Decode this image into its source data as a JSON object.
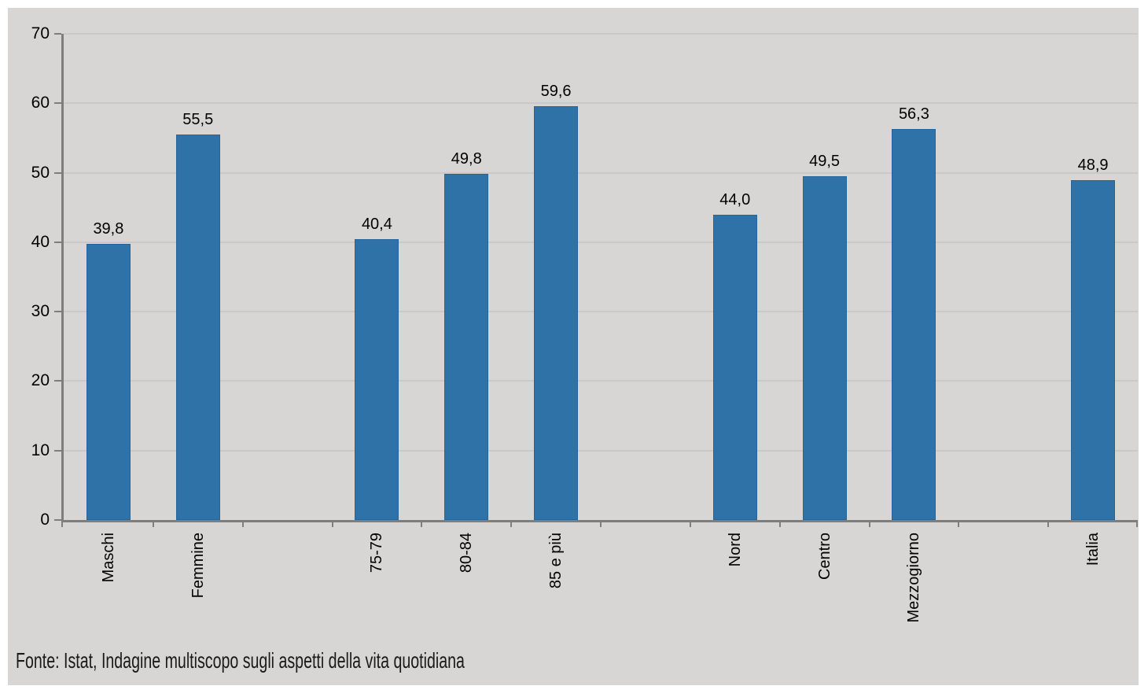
{
  "chart_data": {
    "type": "bar",
    "title": "",
    "xlabel": "",
    "ylabel": "",
    "ylim": [
      0,
      70
    ],
    "yticks": [
      0,
      10,
      20,
      30,
      40,
      50,
      60,
      70
    ],
    "grid": "horizontal",
    "legend": null,
    "slots": 12,
    "bars": [
      {
        "label": "Maschi",
        "value": 39.8,
        "display": "39,8",
        "slot": 0
      },
      {
        "label": "Femmine",
        "value": 55.5,
        "display": "55,5",
        "slot": 1
      },
      {
        "label": "75-79",
        "value": 40.4,
        "display": "40,4",
        "slot": 3
      },
      {
        "label": "80-84",
        "value": 49.8,
        "display": "49,8",
        "slot": 4
      },
      {
        "label": "85 e più",
        "value": 59.6,
        "display": "59,6",
        "slot": 5
      },
      {
        "label": "Nord",
        "value": 44.0,
        "display": "44,0",
        "slot": 7
      },
      {
        "label": "Centro",
        "value": 49.5,
        "display": "49,5",
        "slot": 8
      },
      {
        "label": "Mezzogiorno",
        "value": 56.3,
        "display": "56,3",
        "slot": 9
      },
      {
        "label": "Italia",
        "value": 48.9,
        "display": "48,9",
        "slot": 11
      }
    ],
    "colors": {
      "bar": "#2e72a8",
      "panel_background": "#d7d6d4",
      "gridline": "#cac9c7",
      "axis": "#7e7e7e",
      "label_text": "#000000"
    },
    "source": "Fonte: Istat, Indagine multiscopo sugli aspetti della vita quotidiana"
  }
}
